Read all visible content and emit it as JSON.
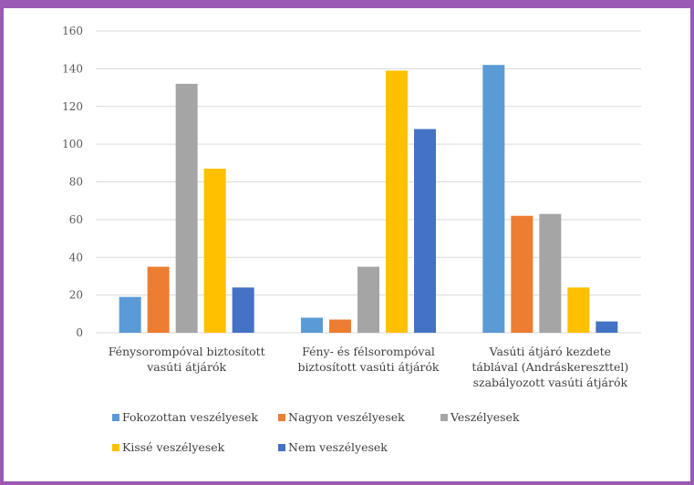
{
  "chart_data": {
    "type": "bar",
    "categories": [
      [
        "Fénysorompóval biztosított",
        "vasúti átjárók"
      ],
      [
        "Fény- és félsorompóval",
        "biztosított vasúti átjárók"
      ],
      [
        "Vasúti átjáró kezdete",
        "táblával (Andráskereszttel)",
        "szabályozott vasúti átjárók"
      ]
    ],
    "series": [
      {
        "name": "Fokozottan veszélyesek",
        "color": "#5b9bd5",
        "values": [
          19,
          8,
          142
        ]
      },
      {
        "name": "Nagyon veszélyesek",
        "color": "#ed7d31",
        "values": [
          35,
          7,
          62
        ]
      },
      {
        "name": "Veszélyesek",
        "color": "#a5a5a5",
        "values": [
          132,
          35,
          63
        ]
      },
      {
        "name": "Kissé veszélyesek",
        "color": "#ffc000",
        "values": [
          87,
          139,
          24
        ]
      },
      {
        "name": "Nem veszélyesek",
        "color": "#4472c4",
        "values": [
          24,
          108,
          6
        ]
      }
    ],
    "yticks": [
      0,
      20,
      40,
      60,
      80,
      100,
      120,
      140,
      160
    ],
    "ylim": [
      0,
      160
    ],
    "grid": true,
    "legend": "bottom",
    "title": "",
    "xlabel": "",
    "ylabel": ""
  }
}
